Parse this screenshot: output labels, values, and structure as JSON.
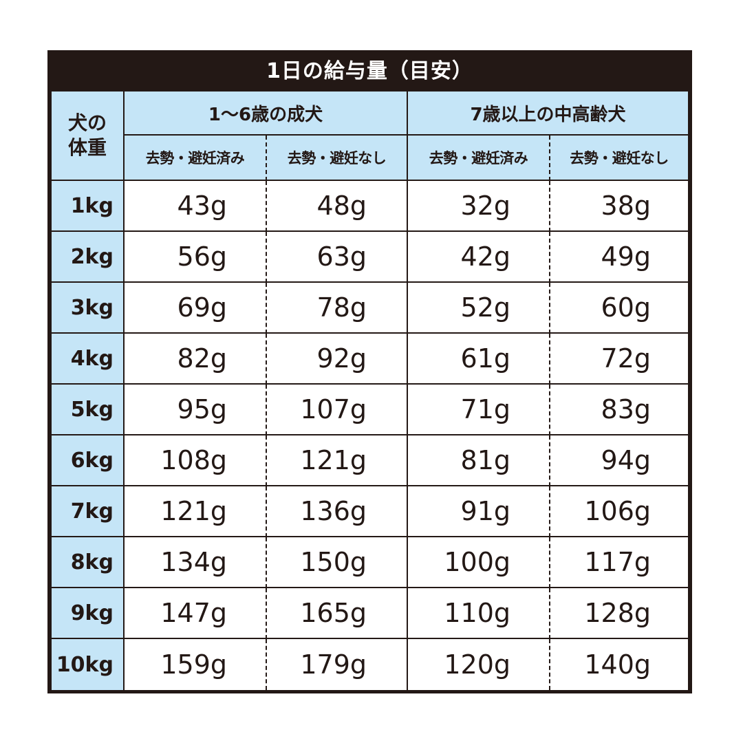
{
  "title": "1日の給与量（目安）",
  "corner_label": [
    "犬の",
    "体重"
  ],
  "groups": [
    "1～6歳の成犬",
    "7歳以上の中高齢犬"
  ],
  "subheaders": [
    "去勢・避妊済み",
    "去勢・避妊なし",
    "去勢・避妊済み",
    "去勢・避妊なし"
  ],
  "colors": {
    "frame": "#231815",
    "header_bg": "#c5e5f7",
    "cell_bg": "#ffffff"
  },
  "chart_data": {
    "type": "table",
    "title": "1日の給与量（目安）",
    "row_header_label": "犬の体重",
    "columns": [
      "1～6歳の成犬 / 去勢・避妊済み",
      "1～6歳の成犬 / 去勢・避妊なし",
      "7歳以上の中高齢犬 / 去勢・避妊済み",
      "7歳以上の中高齢犬 / 去勢・避妊なし"
    ],
    "rows": [
      {
        "weight": "1kg",
        "values": [
          "43g",
          "48g",
          "32g",
          "38g"
        ]
      },
      {
        "weight": "2kg",
        "values": [
          "56g",
          "63g",
          "42g",
          "49g"
        ]
      },
      {
        "weight": "3kg",
        "values": [
          "69g",
          "78g",
          "52g",
          "60g"
        ]
      },
      {
        "weight": "4kg",
        "values": [
          "82g",
          "92g",
          "61g",
          "72g"
        ]
      },
      {
        "weight": "5kg",
        "values": [
          "95g",
          "107g",
          "71g",
          "83g"
        ]
      },
      {
        "weight": "6kg",
        "values": [
          "108g",
          "121g",
          "81g",
          "94g"
        ]
      },
      {
        "weight": "7kg",
        "values": [
          "121g",
          "136g",
          "91g",
          "106g"
        ]
      },
      {
        "weight": "8kg",
        "values": [
          "134g",
          "150g",
          "100g",
          "117g"
        ]
      },
      {
        "weight": "9kg",
        "values": [
          "147g",
          "165g",
          "110g",
          "128g"
        ]
      },
      {
        "weight": "10kg",
        "values": [
          "159g",
          "179g",
          "120g",
          "140g"
        ]
      }
    ]
  }
}
